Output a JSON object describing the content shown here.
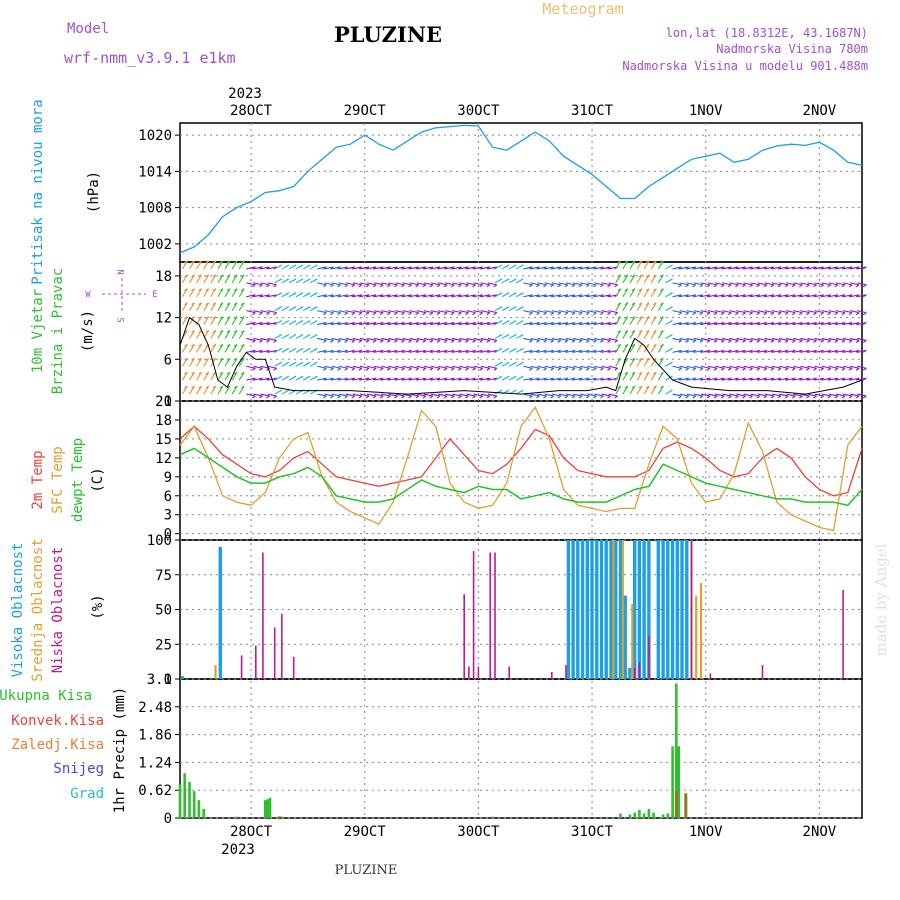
{
  "header": {
    "model_label": "Model",
    "model_name": "wrf-nmm_v3.9.1 e1km",
    "station": "PLUZINE",
    "product": "Meteogram",
    "lonlat": "lon,lat (18.8312E, 43.1687N)",
    "altitude": "Nadmorska Visina 780m",
    "model_altitude": "Nadmorska Visina u modelu 901.488m"
  },
  "time_axis": {
    "year": "2023",
    "days": [
      "28OCT",
      "29OCT",
      "30OCT",
      "31OCT",
      "1NOV",
      "2NOV"
    ],
    "day_hours_from_start": [
      15,
      39,
      63,
      87,
      111,
      135
    ],
    "total_hours": 144
  },
  "footer_label": "PLUZINE",
  "watermark": "made by Angel",
  "colors": {
    "pressure": "#1aa0e6",
    "temp2m": "#e8443a",
    "sfc_temp": "#e0a030",
    "dewpt": "#22c32a",
    "high_cloud": "#1aa0e6",
    "mid_cloud": "#e0a030",
    "low_cloud": "#c01890",
    "total_precip": "#2cc02c",
    "conv_precip": "#e8443a",
    "frozen_precip": "#f08030",
    "snow": "#4444ee",
    "graupel": "#22c0c0",
    "wind_purple": "#8a10d8",
    "wind_blue": "#2a58f0",
    "wind_cyan": "#18b8d8",
    "wind_green": "#30c030",
    "wind_orange": "#e89030",
    "label_purple": "#a050d0",
    "label_pink": "#e84070",
    "day_label_orange": "#e8c070"
  },
  "panels": {
    "pressure": {
      "ylabel": "Pritisak na nivou mora",
      "unit": "(hPa)",
      "ticks": [
        "1020",
        "1014",
        "1008",
        "1002"
      ]
    },
    "wind": {
      "ylabel_line1": "10m Vjetar",
      "ylabel_line2": "Brzina i Pravac",
      "unit": "(m/s)",
      "ticks": [
        "18",
        "12",
        "6",
        "0"
      ],
      "compass": {
        "n": "N",
        "w": "W",
        "e": "E",
        "s": "S"
      }
    },
    "temperature": {
      "ylabel_temp2m": "2m Temp",
      "ylabel_sfc": "SFC Temp",
      "ylabel_dewpt": "dewpt Temp",
      "unit": "(C)",
      "ticks": [
        "21",
        "18",
        "15",
        "12",
        "9",
        "6",
        "3",
        "0"
      ]
    },
    "clouds": {
      "ylabel_high": "Visoka Oblacnost",
      "ylabel_mid": "Srednja Oblacnost",
      "ylabel_low": "Niska Oblacnost",
      "unit": "(%)",
      "ticks": [
        "100",
        "75",
        "50",
        "25",
        "0"
      ]
    },
    "precip": {
      "legend_total": "Ukupna Kisa",
      "legend_conv": "Konvek.Kisa",
      "legend_frozen": "Zaledj.Kisa",
      "legend_snow": "Snijeg",
      "legend_graupel": "Grad",
      "ylabel": "1hr Precip (mm)",
      "ticks": [
        "3.1",
        "2.48",
        "1.86",
        "1.24",
        "0.62",
        "0"
      ]
    }
  },
  "chart_data": [
    {
      "type": "line",
      "title": "Pritisak na nivou mora",
      "ylabel": "(hPa)",
      "ylim": [
        999,
        1022
      ],
      "x_unit": "hours from start",
      "series": [
        {
          "name": "Pritisak na nivou mora",
          "x": [
            0,
            3,
            6,
            9,
            12,
            15,
            18,
            21,
            24,
            27,
            30,
            33,
            36,
            39,
            42,
            45,
            48,
            51,
            54,
            57,
            60,
            63,
            66,
            69,
            72,
            75,
            78,
            81,
            84,
            87,
            90,
            93,
            96,
            99,
            102,
            105,
            108,
            111,
            114,
            117,
            120,
            123,
            126,
            129,
            132,
            135,
            138,
            141,
            144
          ],
          "values": [
            1000.5,
            1001.5,
            1003.5,
            1006.5,
            1008,
            1009,
            1010.5,
            1010.8,
            1011.5,
            1014,
            1016,
            1018,
            1018.5,
            1020,
            1018.5,
            1017.5,
            1019,
            1020.5,
            1021.2,
            1021.4,
            1021.6,
            1021.5,
            1018,
            1017.5,
            1019,
            1020.5,
            1019,
            1016.5,
            1015,
            1013.5,
            1011.5,
            1009.5,
            1009.5,
            1011.5,
            1013,
            1014.5,
            1016,
            1016.5,
            1017,
            1015.5,
            1016,
            1017.5,
            1018.2,
            1018.5,
            1018.3,
            1018.8,
            1017.5,
            1015.5,
            1015
          ]
        }
      ]
    },
    {
      "type": "scatter",
      "title": "10m Vjetar Brzina i Pravac",
      "ylabel": "(m/s)",
      "ylim": [
        0,
        20
      ],
      "x_unit": "hours from start",
      "series": [
        {
          "name": "Wind speed",
          "x": [
            0,
            2,
            4,
            6,
            8,
            10,
            12,
            14,
            16,
            18,
            20,
            24,
            30,
            36,
            48,
            60,
            72,
            80,
            86,
            90,
            92,
            94,
            96,
            98,
            100,
            104,
            108,
            116,
            124,
            132,
            140,
            144
          ],
          "values": [
            8,
            12,
            11,
            8,
            3,
            2,
            5,
            7,
            6,
            6,
            2,
            1.5,
            1.5,
            1.5,
            1,
            1.5,
            1,
            1.5,
            1.5,
            2,
            1.5,
            6,
            9,
            8,
            6,
            3,
            2,
            1.5,
            1.5,
            1,
            2,
            3
          ]
        }
      ]
    },
    {
      "type": "line",
      "title": "2m Temp / SFC Temp / dewpt Temp",
      "ylabel": "(C)",
      "ylim": [
        -1,
        21
      ],
      "x_unit": "hours from start",
      "series": [
        {
          "name": "2m Temp",
          "x": [
            0,
            3,
            6,
            9,
            12,
            15,
            18,
            21,
            24,
            27,
            30,
            33,
            36,
            39,
            42,
            45,
            48,
            51,
            54,
            57,
            60,
            63,
            66,
            69,
            72,
            75,
            78,
            81,
            84,
            87,
            90,
            93,
            96,
            99,
            102,
            105,
            108,
            111,
            114,
            117,
            120,
            123,
            126,
            129,
            132,
            135,
            138,
            141,
            144
          ],
          "values": [
            15,
            17,
            15,
            12.5,
            11,
            9.5,
            9,
            10,
            12,
            13,
            11,
            9,
            8.5,
            8,
            7.5,
            8,
            8.5,
            9,
            12,
            15,
            12.5,
            10,
            9.5,
            11,
            13.5,
            16.5,
            15.5,
            12,
            10,
            9.5,
            9,
            9,
            9,
            10,
            13.5,
            14.5,
            13.5,
            12,
            10,
            9,
            9.5,
            12,
            13.5,
            12,
            9,
            7,
            6,
            6.5,
            13.5
          ]
        },
        {
          "name": "SFC Temp",
          "x": [
            0,
            3,
            6,
            9,
            12,
            15,
            18,
            21,
            24,
            27,
            30,
            33,
            36,
            39,
            42,
            45,
            48,
            51,
            54,
            57,
            60,
            63,
            66,
            69,
            72,
            75,
            78,
            81,
            84,
            87,
            90,
            93,
            96,
            99,
            102,
            105,
            108,
            111,
            114,
            117,
            120,
            123,
            126,
            129,
            132,
            135,
            138,
            141,
            144
          ],
          "values": [
            14,
            17,
            12,
            6,
            5,
            4.5,
            6.5,
            12,
            15,
            16,
            9,
            5,
            3.5,
            2.5,
            1.5,
            5,
            12,
            19.5,
            17,
            8,
            5,
            4,
            4.5,
            8,
            17,
            20,
            15,
            7,
            4.5,
            4,
            3.5,
            4,
            4,
            11,
            17,
            15,
            8,
            5,
            5.5,
            9.5,
            17.5,
            13,
            5,
            3,
            2,
            1,
            0.5,
            14,
            17
          ]
        },
        {
          "name": "dewpt Temp",
          "x": [
            0,
            3,
            6,
            9,
            12,
            15,
            18,
            21,
            24,
            27,
            30,
            33,
            36,
            39,
            42,
            45,
            48,
            51,
            54,
            57,
            60,
            63,
            66,
            69,
            72,
            75,
            78,
            81,
            84,
            87,
            90,
            93,
            96,
            99,
            102,
            105,
            108,
            111,
            114,
            117,
            120,
            123,
            126,
            129,
            132,
            135,
            138,
            141,
            144
          ],
          "values": [
            12.5,
            13.5,
            12,
            10.5,
            9,
            8,
            8,
            9,
            9.5,
            10.5,
            9,
            6,
            5.5,
            5,
            5,
            5.5,
            7,
            8.5,
            7.5,
            7,
            6.5,
            7.5,
            7,
            7,
            5.5,
            6,
            6.5,
            5.5,
            5,
            5,
            5,
            6,
            7,
            7.5,
            11,
            10,
            9,
            8,
            7.5,
            7,
            6.5,
            6,
            5.5,
            5.5,
            5,
            5,
            5,
            4.5,
            7
          ]
        }
      ]
    },
    {
      "type": "bar",
      "title": "Visoka / Srednja / Niska Oblacnost",
      "ylabel": "(%)",
      "ylim": [
        0,
        100
      ],
      "x_unit": "hours from start",
      "series": [
        {
          "name": "Visoka Oblacnost",
          "x": [
            0.5,
            8.5,
            82,
            83,
            84,
            85,
            86,
            87,
            88,
            89,
            90,
            91,
            92,
            93,
            94,
            95,
            96,
            97,
            98,
            99,
            100,
            101,
            102,
            103,
            104,
            105,
            106,
            107
          ],
          "values": [
            2,
            95,
            100,
            100,
            100,
            100,
            100,
            100,
            100,
            100,
            100,
            100,
            100,
            100,
            60,
            8,
            100,
            100,
            100,
            100,
            0,
            100,
            100,
            100,
            100,
            100,
            100,
            100
          ]
        },
        {
          "name": "Srednja Oblacnost",
          "x": [
            7.5,
            91.5,
            93.5,
            95.5,
            108,
            109,
            110
          ],
          "values": [
            10,
            100,
            100,
            54,
            100,
            60,
            69
          ]
        },
        {
          "name": "Niska Oblacnost",
          "x": [
            13,
            16,
            17.5,
            20,
            21.5,
            24,
            60,
            61,
            62,
            63,
            65.5,
            66.5,
            69.5,
            78.5,
            81.5,
            96,
            97,
            99,
            108,
            112,
            123,
            140
          ],
          "values": [
            17,
            24,
            91,
            37,
            47,
            16,
            61,
            9,
            92,
            9,
            91,
            91,
            9,
            5,
            10,
            8,
            12,
            31,
            100,
            4,
            10,
            64
          ]
        }
      ]
    },
    {
      "type": "bar",
      "title": "1hr Precip",
      "ylabel": "(mm)",
      "ylim": [
        0,
        3.1
      ],
      "x_unit": "hours from start",
      "series": [
        {
          "name": "Ukupna Kisa",
          "x": [
            0,
            1,
            2,
            3,
            4,
            5,
            12,
            18,
            18.5,
            19,
            21,
            66,
            93,
            95,
            96,
            97,
            98,
            99,
            100,
            102,
            103,
            104,
            104.8,
            105.3
          ],
          "values": [
            0.75,
            1.0,
            0.8,
            0.6,
            0.4,
            0.2,
            0.03,
            0.4,
            0.42,
            0.45,
            0.04,
            0.03,
            0.1,
            0.08,
            0.12,
            0.18,
            0.1,
            0.2,
            0.12,
            0.08,
            0.1,
            1.6,
            3.0,
            1.6
          ]
        },
        {
          "name": "Konvek.Kisa",
          "x": [
            21.5
          ],
          "values": [
            0.03
          ]
        },
        {
          "name": "Zaledj.Kisa",
          "x": [
            104.8,
            106.8
          ],
          "values": [
            0.6,
            0.55
          ]
        },
        {
          "name": "Snijeg",
          "x": [],
          "values": []
        },
        {
          "name": "Grad",
          "x": [],
          "values": []
        }
      ]
    }
  ]
}
